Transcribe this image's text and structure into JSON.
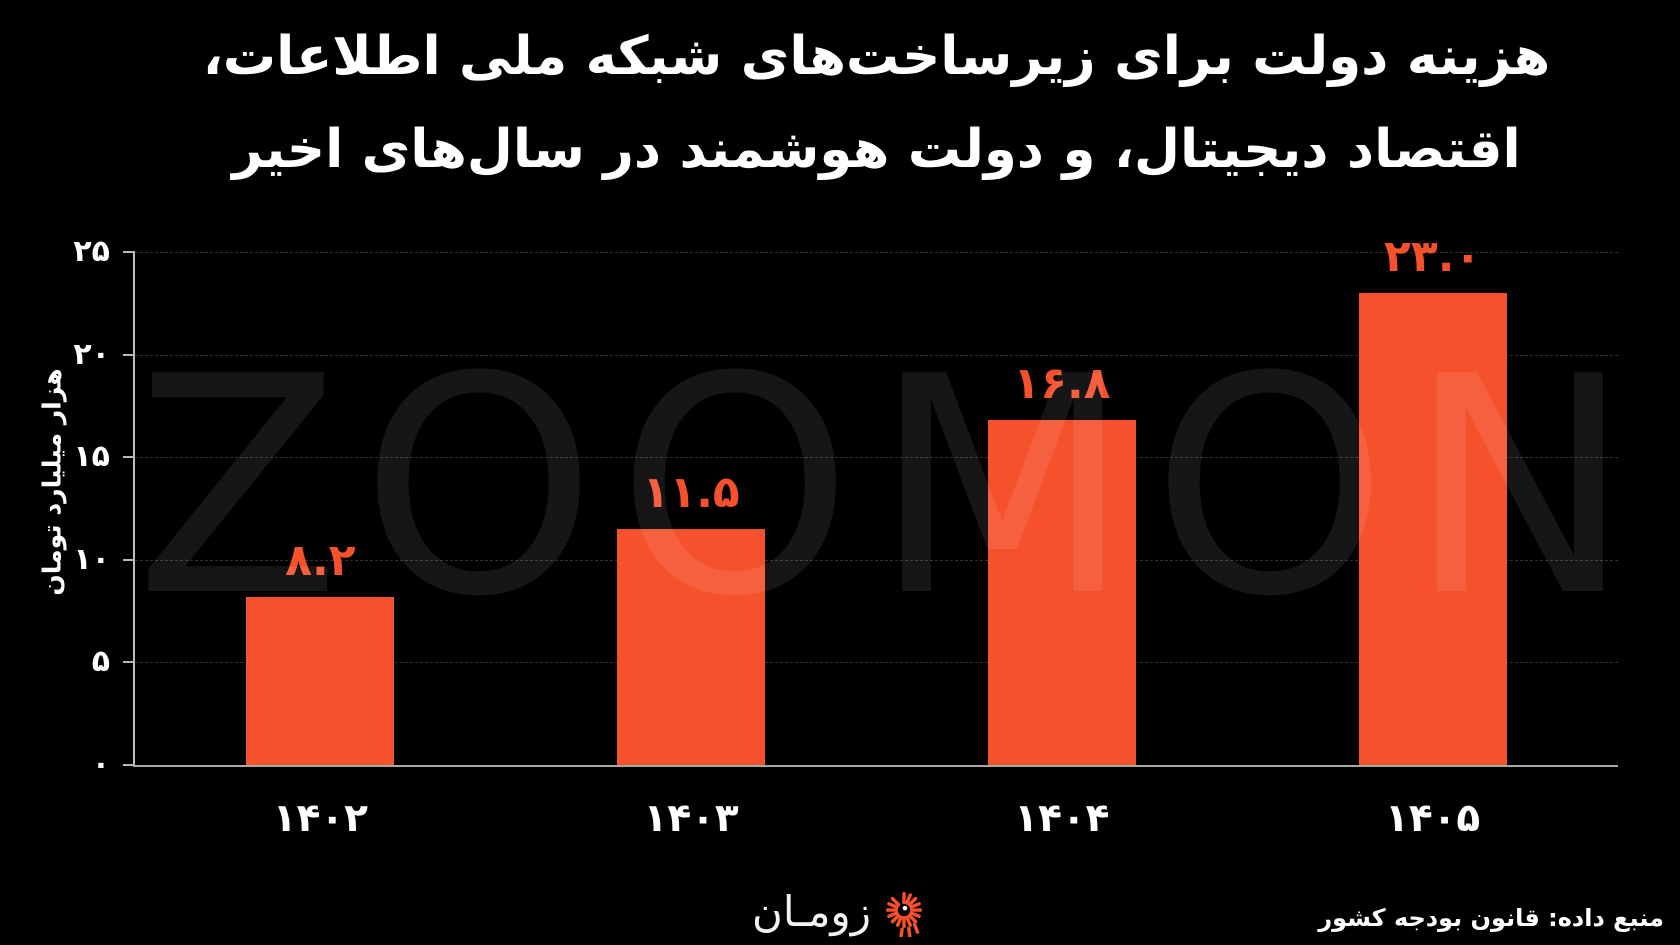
{
  "page": {
    "background_color": "#000000",
    "text_color": "#FFFFFF"
  },
  "title": {
    "line1": "هزینه دولت برای زیرساخت‌های شبکه ملی اطلاعات،",
    "line2": "اقتصاد دیجیتال، و دولت هوشمند در سال‌های اخیر"
  },
  "watermark": "ZOOMON",
  "footer": {
    "brand_name": "زومـان",
    "brand_icon": "zooman-spiral-logo",
    "source_text": "منبع داده: قانون بودجه کشور"
  },
  "chart_data": {
    "type": "bar",
    "title": "هزینه دولت برای زیرساخت‌های شبکه ملی اطلاعات، اقتصاد دیجیتال، و دولت هوشمند در سال‌های اخیر",
    "xlabel": "",
    "ylabel": "هزار میلیارد تومان",
    "categories": [
      "۱۴۰۲",
      "۱۴۰۳",
      "۱۴۰۴",
      "۱۴۰۵"
    ],
    "categories_western": [
      "1402",
      "1403",
      "1404",
      "1405"
    ],
    "values": [
      8.2,
      11.5,
      16.8,
      23.0
    ],
    "value_labels": [
      "۸.۲",
      "۱۱.۵",
      "۱۶.۸",
      "۲۳.۰"
    ],
    "ylim": [
      0,
      25
    ],
    "y_ticks": [
      {
        "value": 0,
        "label": "۰"
      },
      {
        "value": 5,
        "label": "۵"
      },
      {
        "value": 10,
        "label": "۱۰"
      },
      {
        "value": 15,
        "label": "۱۵"
      },
      {
        "value": 20,
        "label": "۲۰"
      },
      {
        "value": 25,
        "label": "۲۵"
      }
    ],
    "grid": "horizontal dashed, behind bars",
    "legend": "none",
    "bar_color": "#F4512C",
    "value_label_color": "#F4512C",
    "axis_color": "#B8B8B8",
    "grid_color": "#323232",
    "tick_label_color": "#FFFFFF"
  }
}
